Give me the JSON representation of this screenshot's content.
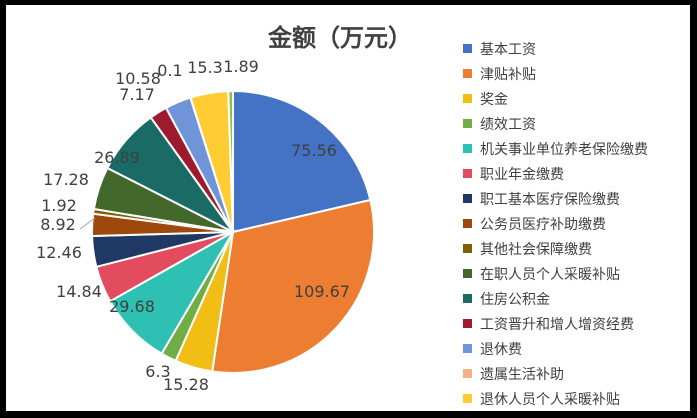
{
  "chart_data": {
    "type": "pie",
    "title": "金额（万元）",
    "legend_position": "right",
    "categories": [
      "基本工资",
      "津贴补贴",
      "奖金",
      "绩效工资",
      "机关事业单位养老保险缴费",
      "职业年金缴费",
      "职工基本医疗保险缴费",
      "公务员医疗补助缴费",
      "其他社会保障缴费",
      "在职人员个人采暖补贴",
      "住房公积金",
      "工资晋升和增人增资经费",
      "退休费",
      "遗属生活补助",
      "退休人员个人采暖补贴",
      ""
    ],
    "values": [
      75.56,
      109.67,
      15.28,
      6.3,
      29.68,
      14.84,
      12.46,
      8.92,
      1.92,
      17.28,
      26.89,
      7.17,
      10.58,
      0.1,
      15.3,
      1.89
    ],
    "data_labels": [
      "75.56",
      "109.67",
      "15.28",
      "6.3",
      "29.68",
      "14.84",
      "12.46",
      "8.92",
      "1.92",
      "17.28",
      "26.89",
      "7.17",
      "10.58",
      "0.1",
      "15.3",
      "1.89"
    ],
    "colors": [
      "#4472C4",
      "#ED7D31",
      "#F1BE16",
      "#70AD47",
      "#2EC1B3",
      "#E34B5E",
      "#203864",
      "#9E480E",
      "#806000",
      "#43682B",
      "#1A6B66",
      "#9E1B2F",
      "#6F95D8",
      "#F4B183",
      "#FFCC33",
      "#8BC34A"
    ]
  }
}
